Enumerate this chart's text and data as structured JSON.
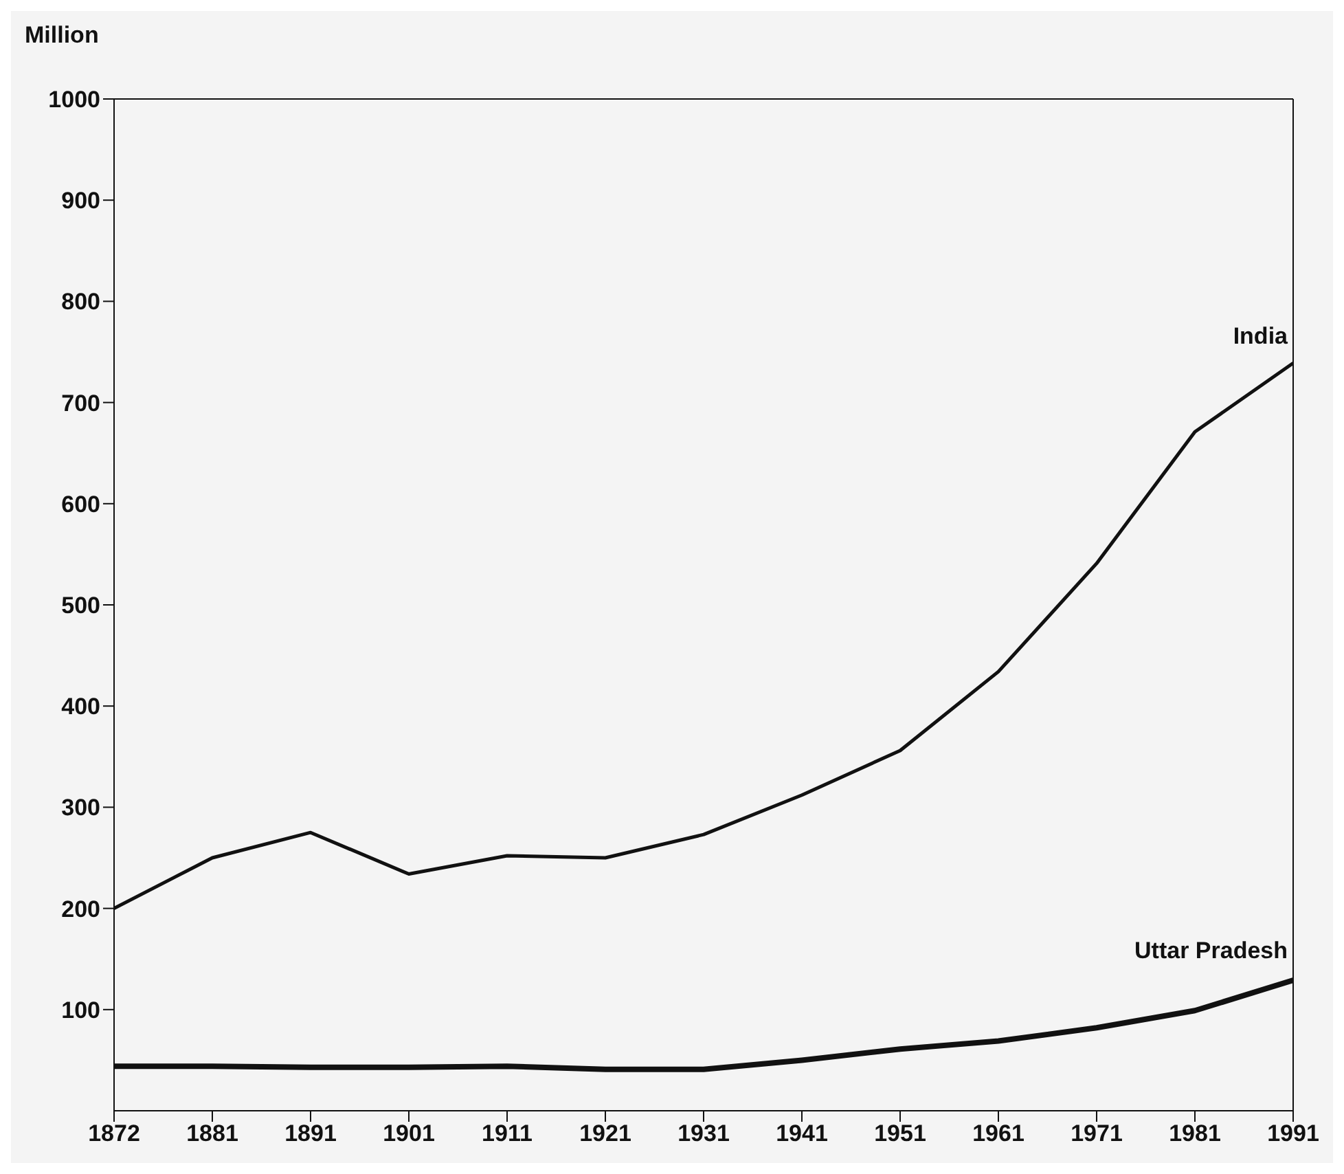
{
  "chart_data": {
    "type": "line",
    "ylabel": "Million",
    "categories": [
      "1872",
      "1881",
      "1891",
      "1901",
      "1911",
      "1921",
      "1931",
      "1941",
      "1951",
      "1961",
      "1971",
      "1981",
      "1991"
    ],
    "series": [
      {
        "name": "India",
        "color": "#111111",
        "values": [
          200,
          250,
          275,
          234,
          252,
          250,
          273,
          312,
          356,
          434,
          541,
          671,
          739
        ]
      },
      {
        "name": "Uttar Pradesh",
        "color": "#111111",
        "values": [
          44,
          44,
          43,
          43,
          44,
          41,
          41,
          50,
          61,
          69,
          82,
          99,
          129
        ]
      }
    ],
    "ylim": [
      0,
      1000
    ],
    "yticks": [
      100,
      200,
      300,
      400,
      500,
      600,
      700,
      800,
      900,
      1000
    ],
    "grid": false,
    "legend": false,
    "marker": "none",
    "line_style": "solid"
  }
}
